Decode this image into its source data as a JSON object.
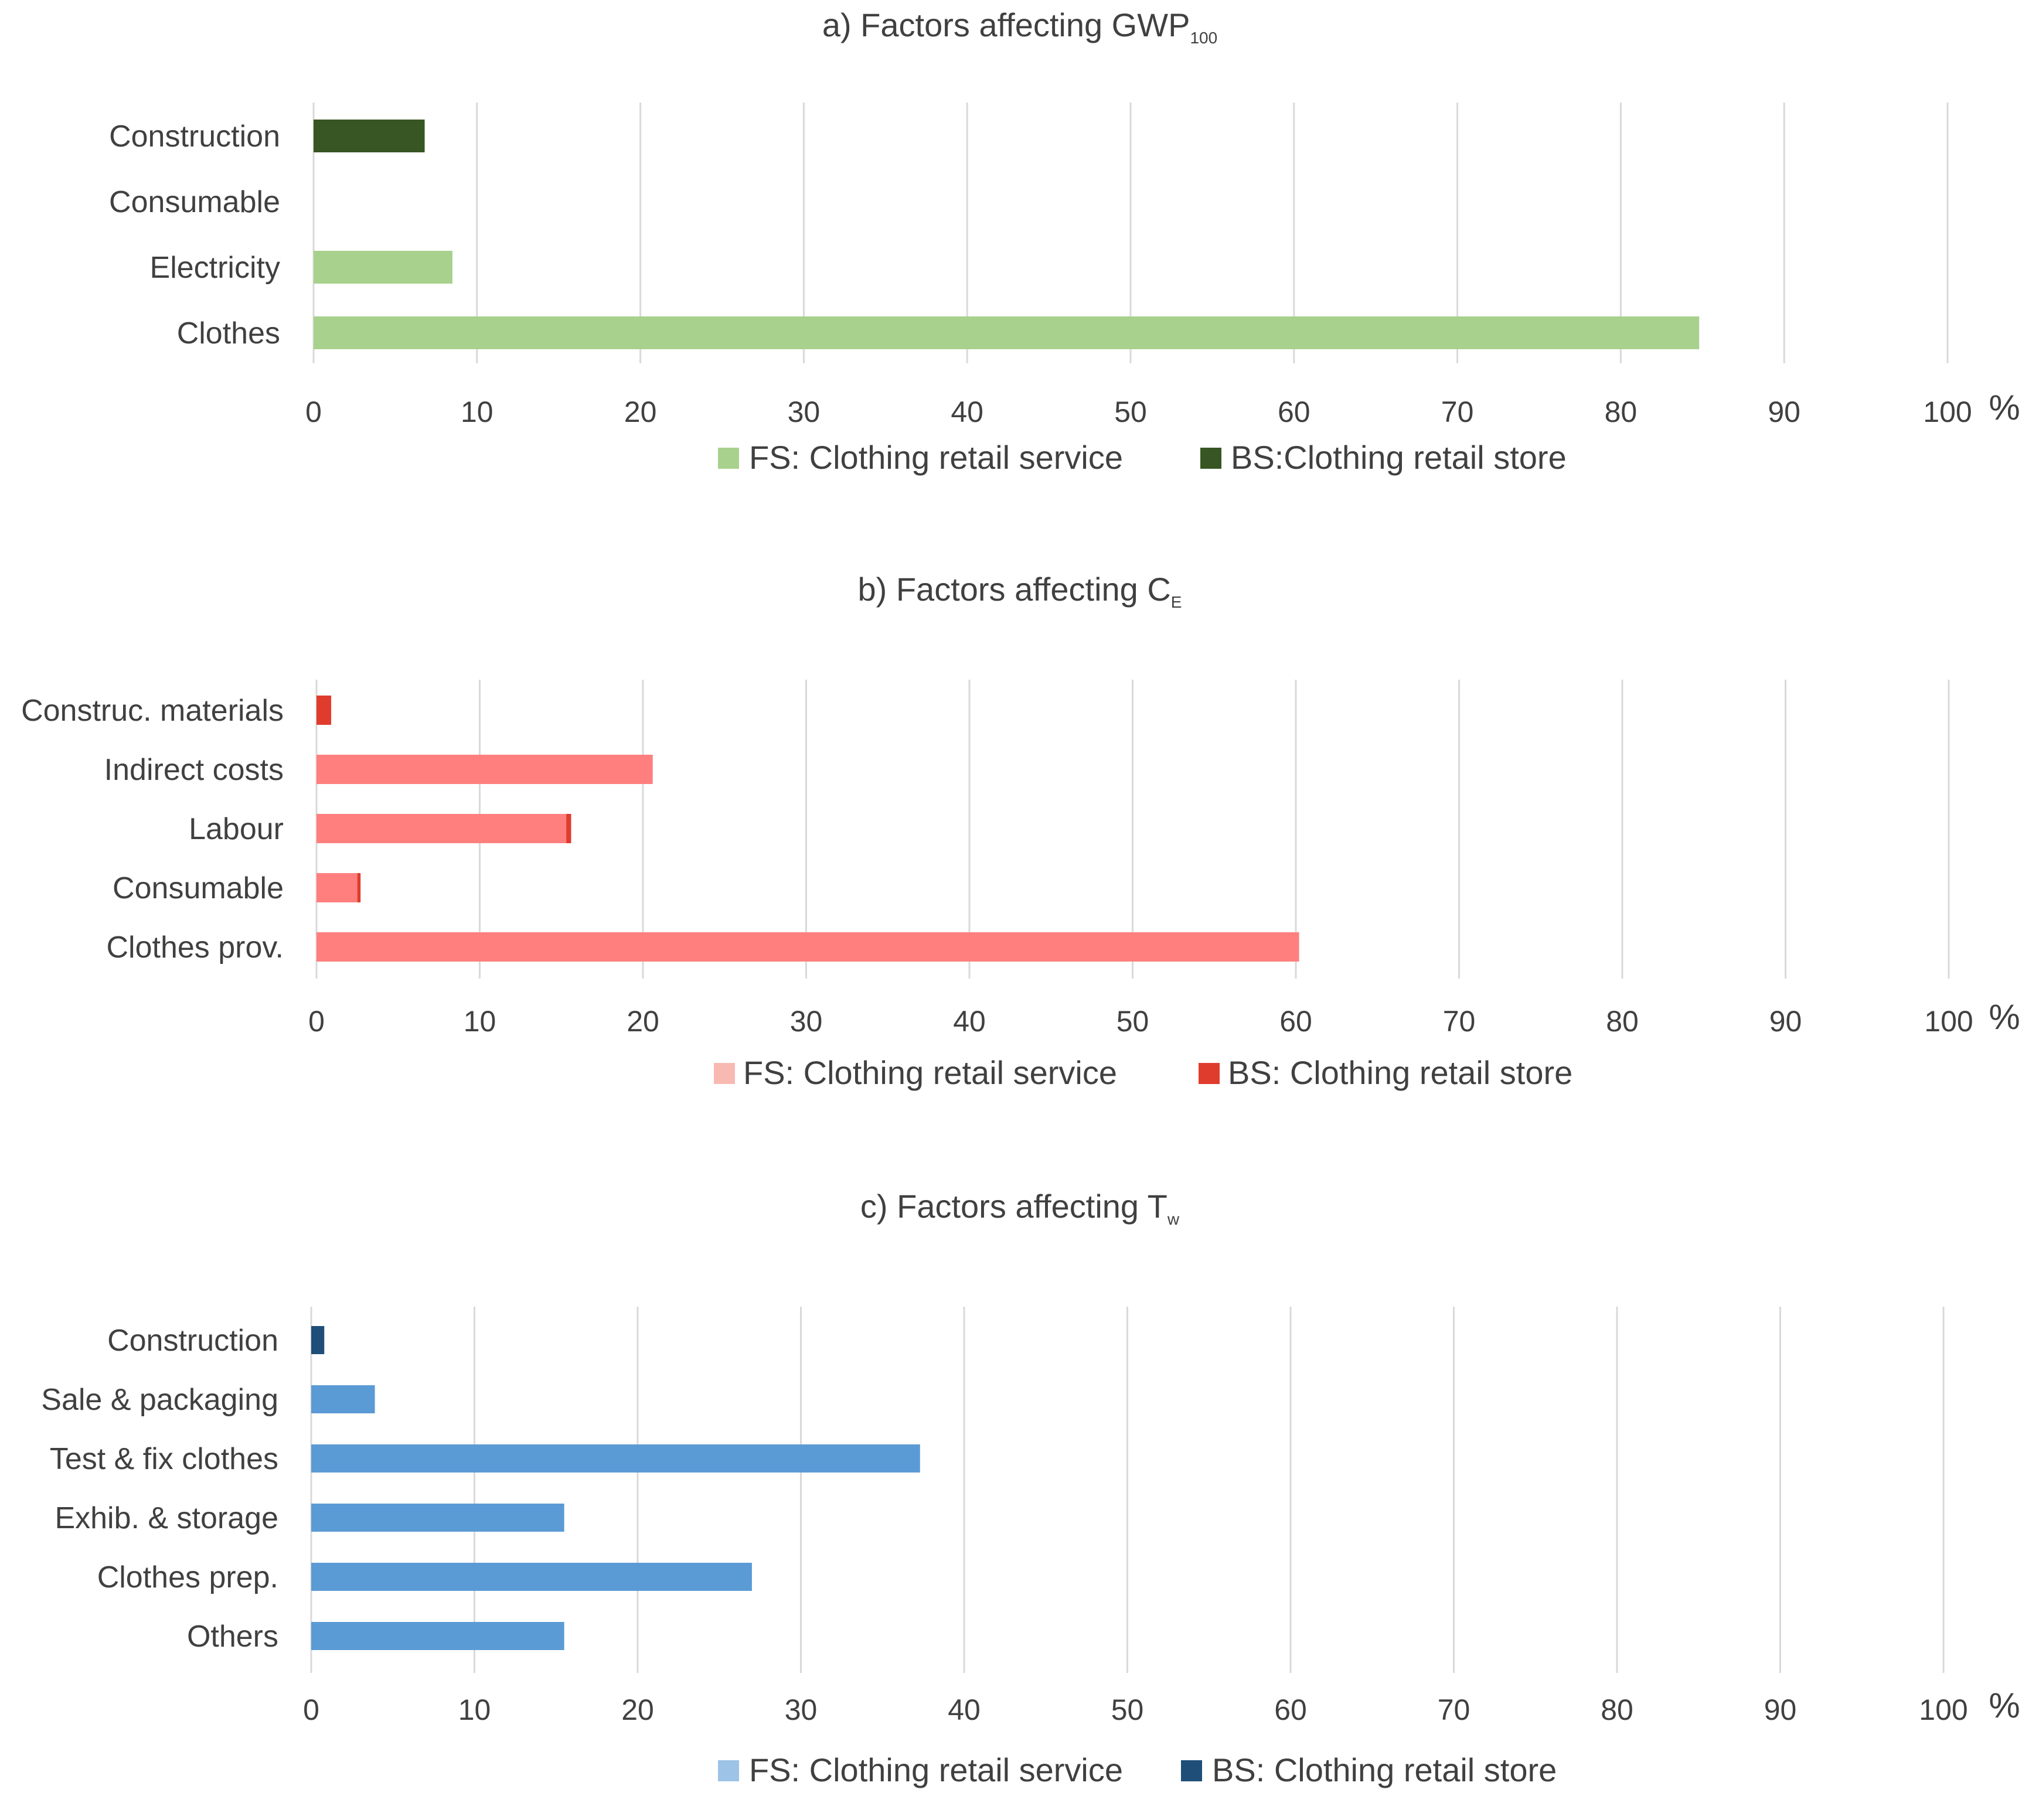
{
  "chart_data": [
    {
      "type": "bar",
      "orientation": "horizontal",
      "stacked": true,
      "title": "a) Factors affecting GWP",
      "title_subscript": "100",
      "unit_label": "%",
      "xlim": [
        0,
        100
      ],
      "ticks": [
        0,
        10,
        20,
        30,
        40,
        50,
        60,
        70,
        80,
        90,
        100
      ],
      "grid": true,
      "legend_position": "bottom",
      "categories": [
        "Construction",
        "Consumable",
        "Electricity",
        "Clothes"
      ],
      "series": [
        {
          "name": "FS: Clothing retail service",
          "color": "#a9d18e",
          "values": [
            0,
            0,
            8.5,
            84.8
          ]
        },
        {
          "name": "BS:Clothing retail store",
          "color": "#375623",
          "values": [
            6.8,
            0,
            0,
            0
          ]
        }
      ]
    },
    {
      "type": "bar",
      "orientation": "horizontal",
      "stacked": true,
      "title": "b) Factors affecting C",
      "title_subscript": "E",
      "unit_label": "%",
      "xlim": [
        0,
        100
      ],
      "ticks": [
        0,
        10,
        20,
        30,
        40,
        50,
        60,
        70,
        80,
        90,
        100
      ],
      "grid": true,
      "legend_position": "bottom",
      "categories": [
        "Construc. materials",
        "Indirect costs",
        "Labour",
        "Consumable",
        "Clothes prov."
      ],
      "series": [
        {
          "name": "FS: Clothing retail service",
          "color": "#ff7f7f",
          "values": [
            0,
            20.6,
            15.3,
            2.5,
            60.2
          ]
        },
        {
          "name": "BS: Clothing retail store",
          "color": "#e03c2d",
          "values": [
            0.9,
            0,
            0.3,
            0.2,
            0
          ]
        }
      ]
    },
    {
      "type": "bar",
      "orientation": "horizontal",
      "stacked": true,
      "title": "c) Factors affecting T",
      "title_subscript": "w",
      "unit_label": "%",
      "xlim": [
        0,
        100
      ],
      "ticks": [
        0,
        10,
        20,
        30,
        40,
        50,
        60,
        70,
        80,
        90,
        100
      ],
      "grid": true,
      "legend_position": "bottom",
      "categories": [
        "Construction",
        "Sale & packaging",
        "Test & fix clothes",
        "Exhib. & storage",
        "Clothes prep.",
        "Others"
      ],
      "series": [
        {
          "name": "FS: Clothing retail service",
          "color": "#5b9bd5",
          "values": [
            0,
            3.9,
            37.3,
            15.5,
            27.0,
            15.5
          ]
        },
        {
          "name": "BS: Clothing retail store",
          "color": "#1f4e79",
          "values": [
            0.8,
            0,
            0,
            0,
            0,
            0
          ]
        }
      ]
    }
  ],
  "colors": {
    "grid": "#d9d9d9",
    "text": "#404040",
    "fs_legend_a": "#a9d18e",
    "bs_legend_a": "#375623",
    "fs_legend_b": "#f9b9b3",
    "bs_legend_b": "#e03c2d",
    "fs_legend_c": "#9dc3e6",
    "bs_legend_c": "#1f4e79"
  }
}
